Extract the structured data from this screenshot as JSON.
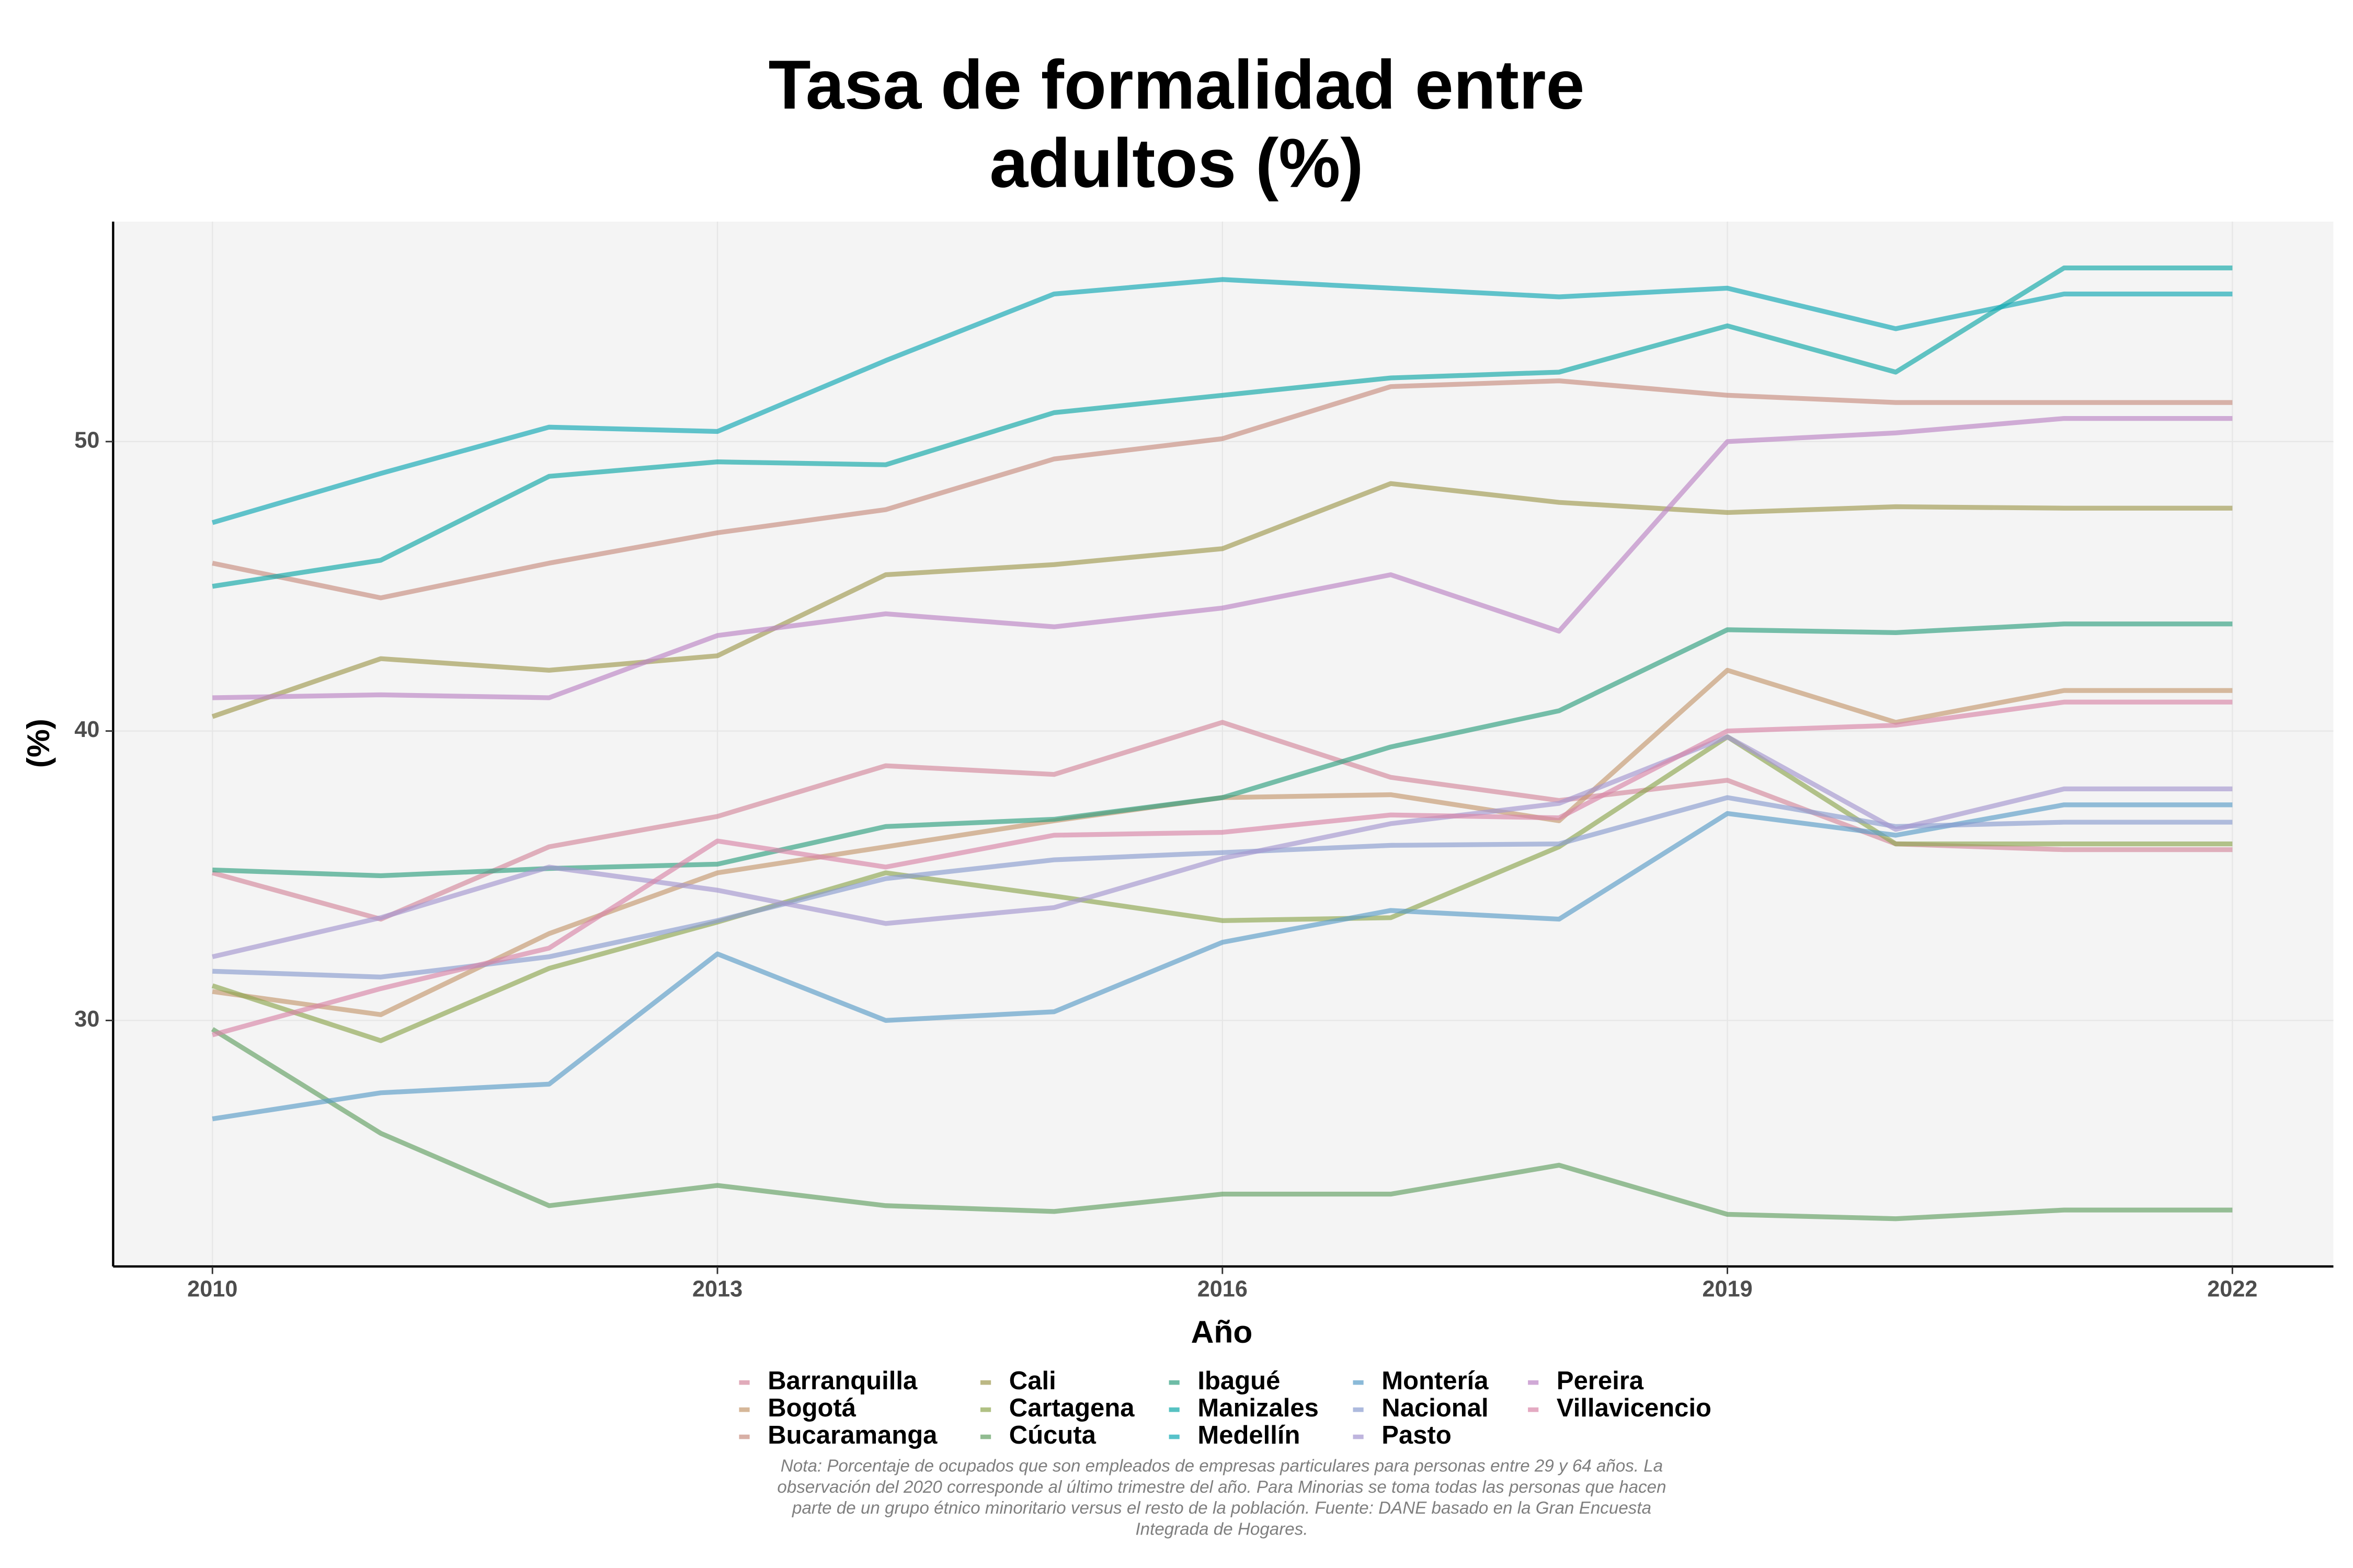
{
  "chart_data": {
    "type": "line",
    "title": "Tasa de formalidad entre adultos (%)",
    "x_label": "Año",
    "y_label": "(%)",
    "note": "Nota: Porcentaje de ocupados que son empleados de empresas particulares para personas entre 29 y 64 años. La observación del 2020 corresponde al último trimestre del año. Para Minorias se toma todas las personas que hacen parte de un grupo étnico minoritario versus el resto de la población. Fuente: DANE basado en la Gran Encuesta Integrada de Hogares.",
    "x": [
      2010,
      2011,
      2012,
      2013,
      2014,
      2015,
      2016,
      2017,
      2018,
      2019,
      2020,
      2021,
      2022
    ],
    "xlim": [
      2009.41,
      2022.6
    ],
    "xticks": [
      2010,
      2013,
      2016,
      2019,
      2022
    ],
    "ylim": [
      21.5,
      57.6
    ],
    "yticks": [
      30,
      40,
      50
    ],
    "grid": true,
    "series": [
      {
        "name": "Barranquilla",
        "color": "#d4889c",
        "values": [
          35.1,
          33.5,
          36.0,
          37.05,
          38.8,
          38.5,
          40.3,
          38.4,
          37.6,
          38.3,
          36.1,
          35.9,
          35.9
        ]
      },
      {
        "name": "Bogotá",
        "color": "#c4986e",
        "values": [
          31.0,
          30.2,
          33.0,
          35.1,
          36.0,
          36.9,
          37.7,
          37.8,
          36.9,
          42.1,
          40.3,
          41.4,
          41.4
        ]
      },
      {
        "name": "Bucaramanga",
        "color": "#c88e80",
        "values": [
          45.8,
          44.6,
          45.8,
          46.85,
          47.65,
          49.4,
          50.1,
          51.9,
          52.1,
          51.6,
          51.35,
          51.35,
          51.35
        ]
      },
      {
        "name": "Cali",
        "color": "#a09a50",
        "values": [
          40.5,
          42.5,
          42.1,
          42.6,
          45.4,
          45.75,
          46.3,
          48.55,
          47.9,
          47.55,
          47.75,
          47.7,
          47.7
        ]
      },
      {
        "name": "Cartagena",
        "color": "#8ea650",
        "values": [
          31.2,
          29.3,
          31.8,
          33.4,
          35.1,
          34.3,
          33.45,
          33.55,
          36.0,
          39.8,
          36.1,
          36.1,
          36.1
        ]
      },
      {
        "name": "Cúcuta",
        "color": "#62a062",
        "values": [
          29.7,
          26.1,
          23.6,
          24.3,
          23.6,
          23.4,
          24.0,
          24.0,
          25.0,
          23.3,
          23.15,
          23.45,
          23.45
        ]
      },
      {
        "name": "Ibagué",
        "color": "#30a080",
        "values": [
          35.2,
          35.0,
          35.25,
          35.4,
          36.7,
          36.95,
          37.7,
          39.45,
          40.7,
          43.5,
          43.4,
          43.7,
          43.7
        ]
      },
      {
        "name": "Manizales",
        "color": "#10a8a8",
        "values": [
          45.0,
          45.9,
          48.8,
          49.3,
          49.2,
          51.0,
          51.6,
          52.2,
          52.4,
          54.0,
          52.4,
          56.0,
          56.0
        ]
      },
      {
        "name": "Medellín",
        "color": "#10a8b4",
        "values": [
          47.2,
          48.9,
          50.5,
          50.35,
          52.8,
          55.1,
          55.6,
          55.3,
          55.0,
          55.3,
          53.9,
          55.1,
          55.1
        ]
      },
      {
        "name": "Montería",
        "color": "#5a9cc8",
        "values": [
          26.6,
          27.5,
          27.8,
          32.3,
          30.0,
          30.3,
          32.7,
          33.8,
          33.5,
          37.15,
          36.4,
          37.45,
          37.45
        ]
      },
      {
        "name": "Nacional",
        "color": "#8a9cd0",
        "values": [
          31.7,
          31.5,
          32.2,
          33.45,
          34.9,
          35.55,
          35.8,
          36.05,
          36.1,
          37.7,
          36.7,
          36.85,
          36.85
        ]
      },
      {
        "name": "Pasto",
        "color": "#a496d0",
        "values": [
          32.2,
          33.55,
          35.3,
          34.5,
          33.35,
          33.9,
          35.6,
          36.8,
          37.5,
          39.8,
          36.6,
          38.0,
          38.0
        ]
      },
      {
        "name": "Pereira",
        "color": "#bc84c4",
        "values": [
          41.15,
          41.25,
          41.15,
          43.3,
          44.05,
          43.6,
          44.25,
          45.4,
          43.45,
          50.0,
          50.3,
          50.8,
          50.8
        ]
      },
      {
        "name": "Villavicencio",
        "color": "#d886a8",
        "values": [
          29.5,
          31.1,
          32.5,
          36.2,
          35.3,
          36.4,
          36.5,
          37.1,
          37.0,
          40.0,
          40.2,
          41.0,
          41.0
        ]
      }
    ]
  }
}
